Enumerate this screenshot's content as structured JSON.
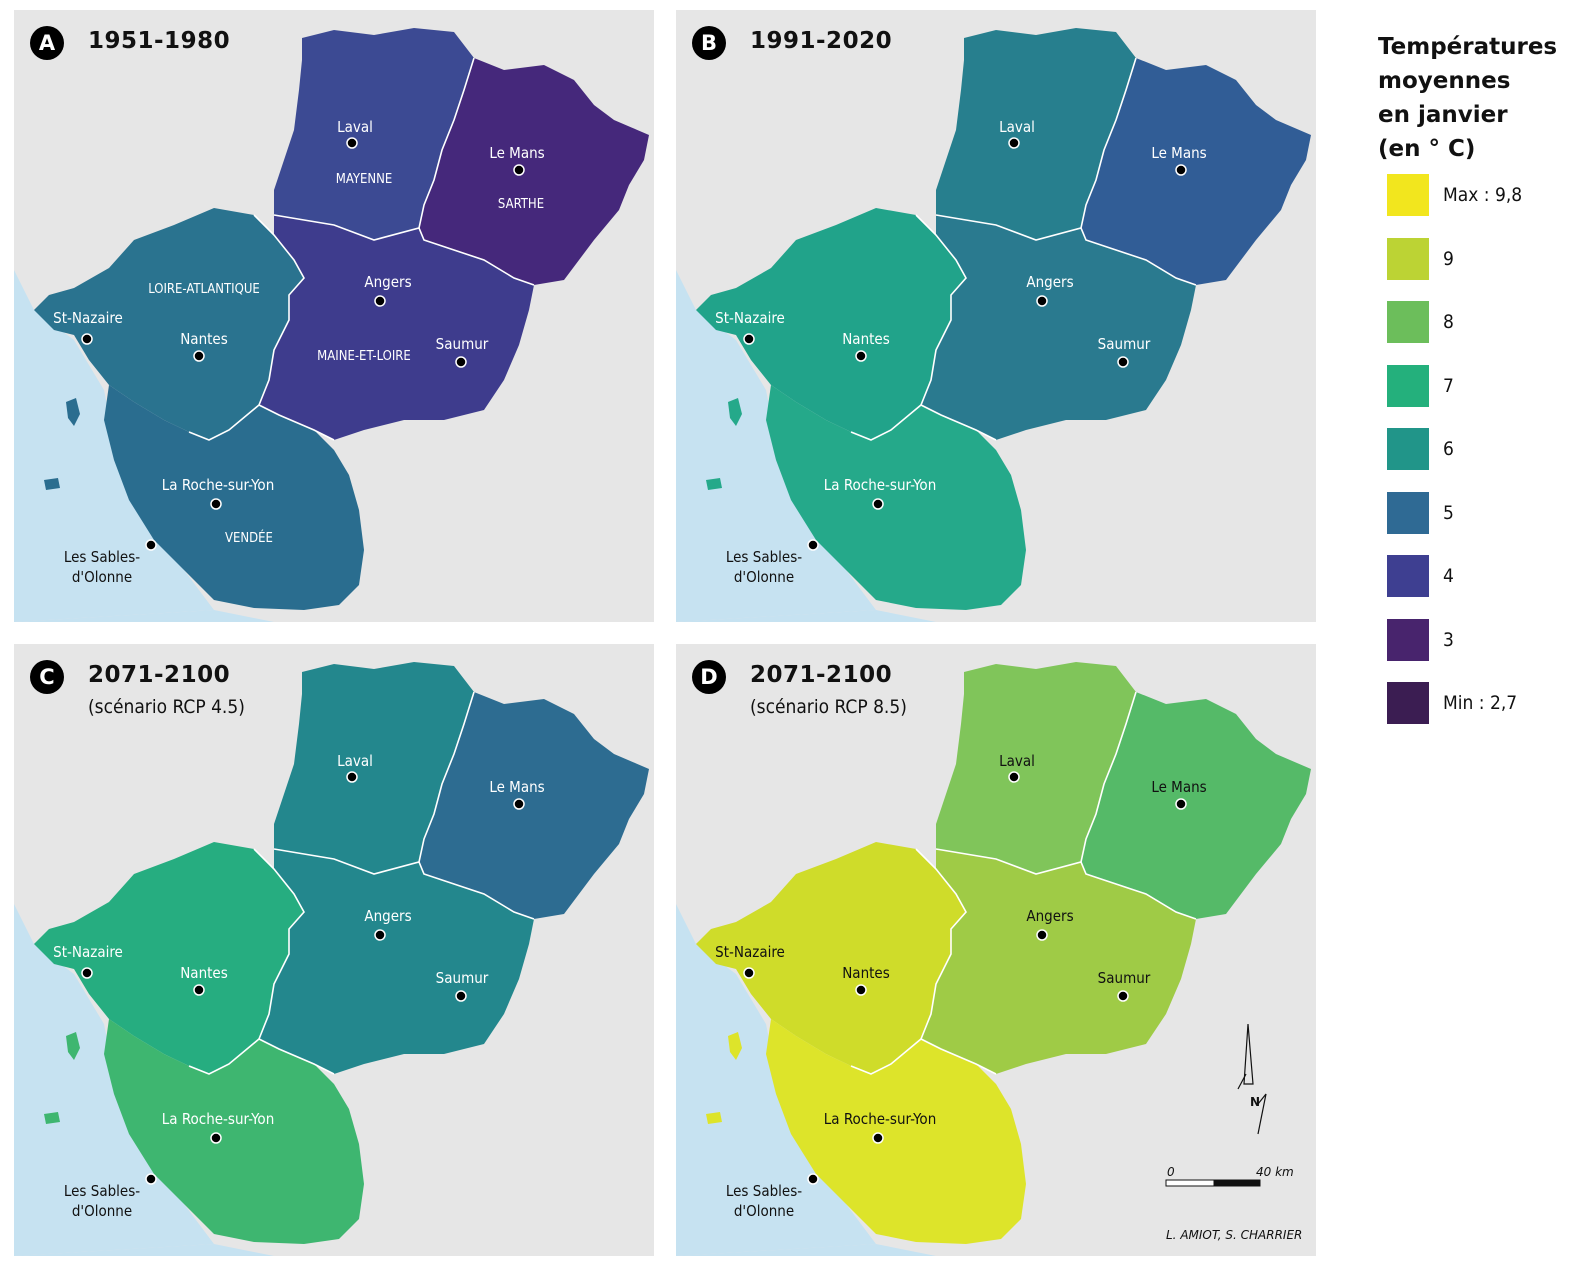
{
  "legend": {
    "title_lines": [
      "Températures",
      "moyennes",
      "en janvier",
      "(en ° C)"
    ],
    "items": [
      {
        "label": "Max : 9,8",
        "color": "#f2e61e"
      },
      {
        "label": "9",
        "color": "#bcd334"
      },
      {
        "label": "8",
        "color": "#6cbe5b"
      },
      {
        "label": "7",
        "color": "#24b07c"
      },
      {
        "label": "6",
        "color": "#219589"
      },
      {
        "label": "5",
        "color": "#2f6a94"
      },
      {
        "label": "4",
        "color": "#3e3f91"
      },
      {
        "label": "3",
        "color": "#48246d"
      },
      {
        "label": "Min : 2,7",
        "color": "#3b1d52"
      }
    ]
  },
  "panels": [
    {
      "id": "A",
      "letter": "A",
      "title": "1951-1980",
      "subtitle": "",
      "colors": {
        "loire_atlantique": "#2a738f",
        "vendee": "#2a6d8f",
        "mayenne": "#3c4a93",
        "sarthe": "#45287b",
        "maine_et_loire": "#3e3c8d",
        "sea": "#c6e2f1",
        "bg": "#e6e6e6"
      },
      "departments": [
        "LOIRE-ATLANTIQUE",
        "MAYENNE",
        "SARTHE",
        "MAINE-ET-LOIRE",
        "VENDÉE"
      ]
    },
    {
      "id": "B",
      "letter": "B",
      "title": "1991-2020",
      "subtitle": "",
      "colors": {
        "loire_atlantique": "#21a38a",
        "vendee": "#25a98a",
        "mayenne": "#277f8e",
        "sarthe": "#315d96",
        "maine_et_loire": "#2a7a8f",
        "sea": "#c6e2f1",
        "bg": "#e6e6e6"
      },
      "departments": []
    },
    {
      "id": "C",
      "letter": "C",
      "title": "2071-2100",
      "subtitle": "(scénario RCP 4.5)",
      "colors": {
        "loire_atlantique": "#26ad80",
        "vendee": "#3eb670",
        "mayenne": "#23878d",
        "sarthe": "#2d6c91",
        "maine_et_loire": "#23878d",
        "sea": "#c6e2f1",
        "bg": "#e6e6e6"
      },
      "departments": []
    },
    {
      "id": "D",
      "letter": "D",
      "title": "2071-2100",
      "subtitle": "(scénario RCP 8.5)",
      "colors": {
        "loire_atlantique": "#cfdc2a",
        "vendee": "#dde42a",
        "mayenne": "#80c55a",
        "sarthe": "#55ba68",
        "maine_et_loire": "#9fcb46",
        "sea": "#c6e2f1",
        "bg": "#e6e6e6"
      },
      "departments": []
    }
  ],
  "cities": [
    "Laval",
    "Le Mans",
    "Angers",
    "Saumur",
    "St-Nazaire",
    "Nantes",
    "La Roche-sur-Yon",
    "Les Sables-",
    "d'Olonne"
  ],
  "scale": {
    "start": "0",
    "end": "40 km"
  },
  "north": "N",
  "credit": "L. AMIOT, S. CHARRIER"
}
